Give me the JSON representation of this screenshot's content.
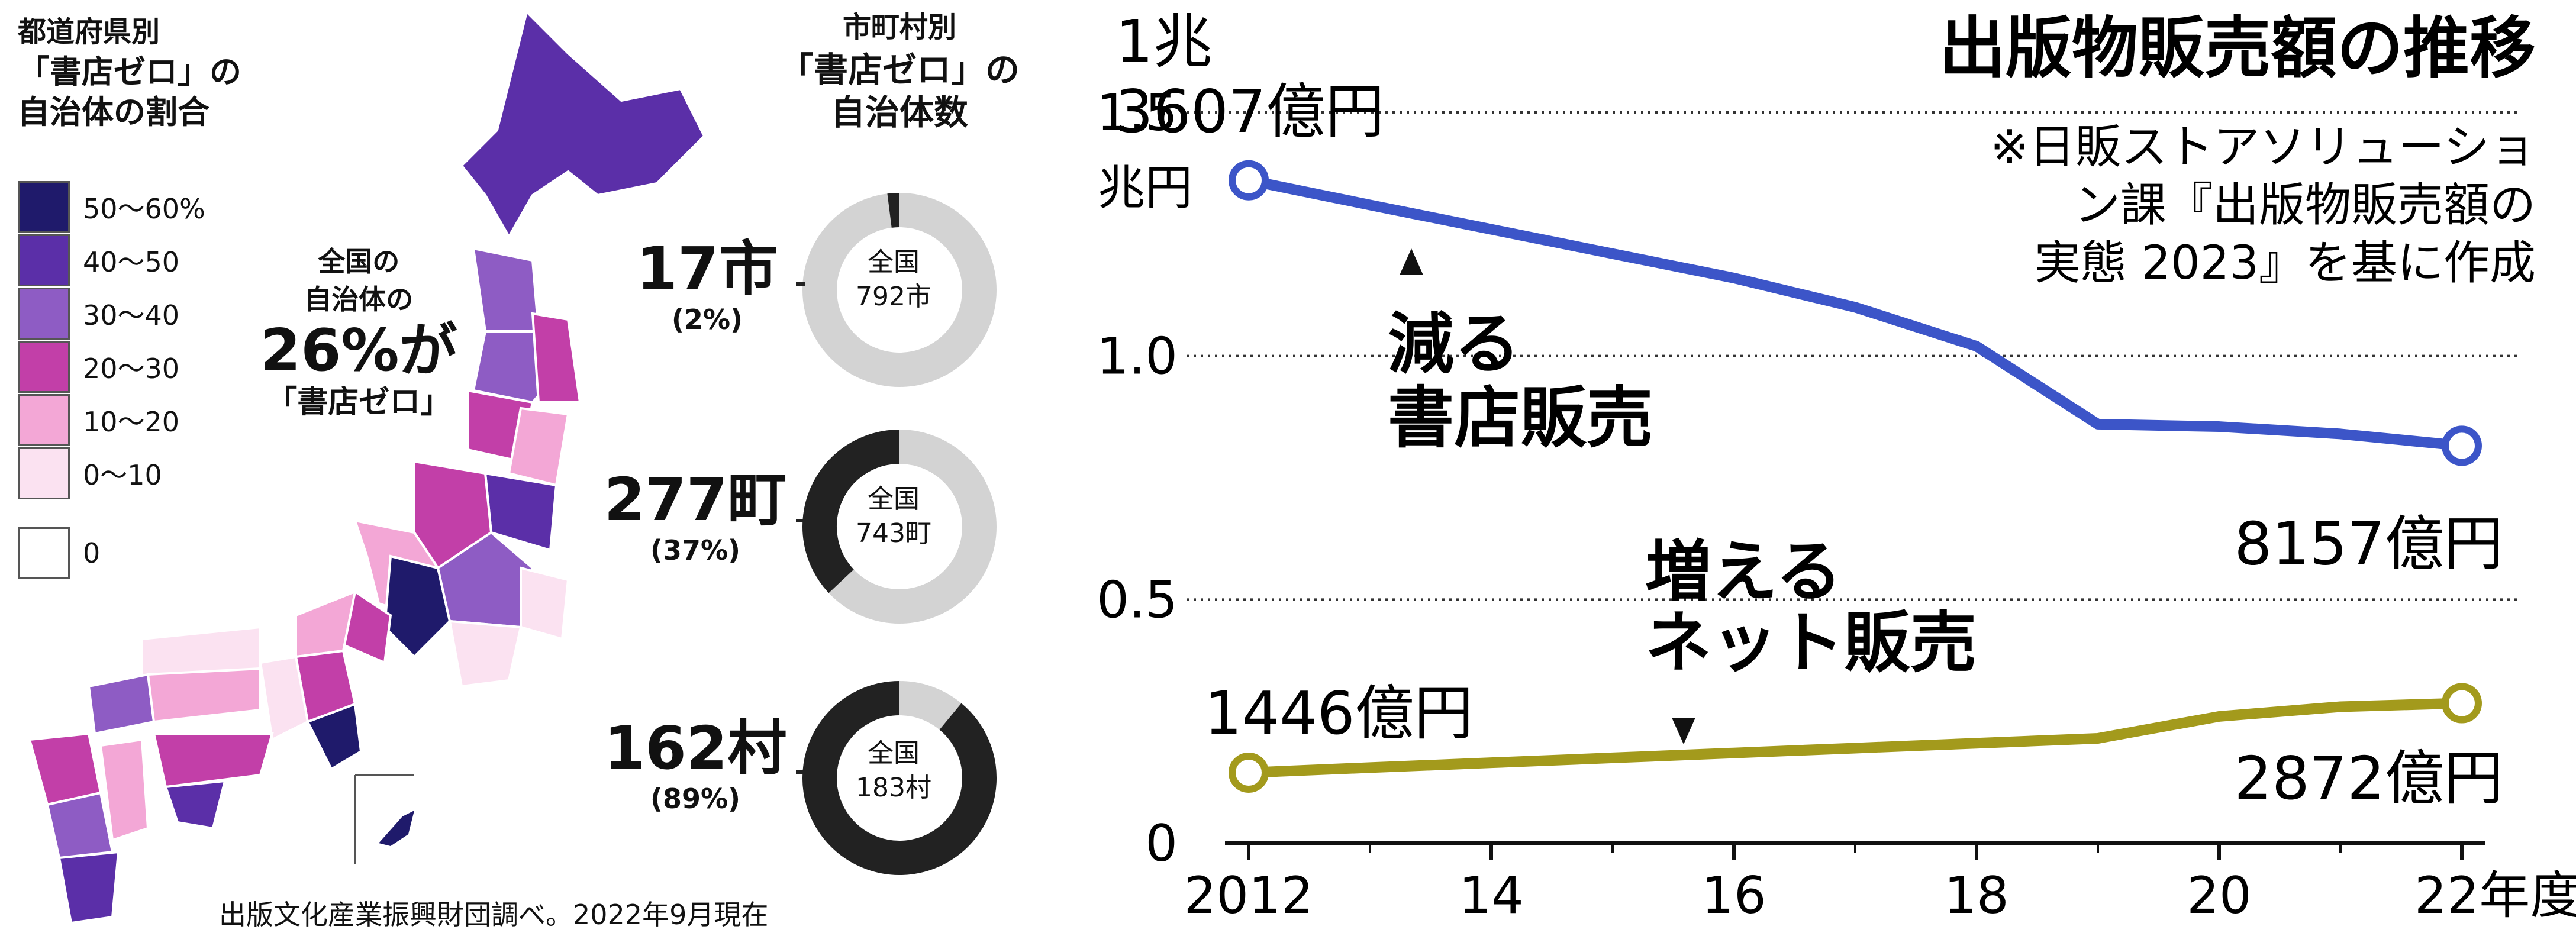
{
  "map": {
    "title_line1": "都道府県別",
    "title_line2": "「書店ゼロ」の",
    "title_line3": "自治体の割合",
    "legend": [
      {
        "label": "50〜60%",
        "color": "#1f1a6b"
      },
      {
        "label": "40〜50",
        "color": "#5b2fa8"
      },
      {
        "label": "30〜40",
        "color": "#8e5cc4"
      },
      {
        "label": "20〜30",
        "color": "#c23fa8"
      },
      {
        "label": "10〜20",
        "color": "#f3a7d6"
      },
      {
        "label": "0〜10",
        "color": "#fbe2f1"
      },
      {
        "label": "0",
        "color": "#ffffff"
      }
    ],
    "callout_line1": "全国の",
    "callout_line2": "自治体の",
    "callout_big": "26%が",
    "callout_line4": "「書店ゼロ」"
  },
  "donuts": {
    "title_line1": "市町村別",
    "title_line2": "「書店ゼロ」の",
    "title_line3": "自治体数",
    "items": [
      {
        "count_label": "17市",
        "pct_label": "(2%)",
        "center_line1": "全国",
        "center_line2": "792市",
        "fraction": 0.02
      },
      {
        "count_label": "277町",
        "pct_label": "(37%)",
        "center_line1": "全国",
        "center_line2": "743町",
        "fraction": 0.37
      },
      {
        "count_label": "162村",
        "pct_label": "(89%)",
        "center_line1": "全国",
        "center_line2": "183村",
        "fraction": 0.89
      }
    ],
    "colors": {
      "filled": "#222222",
      "remaining": "#d3d3d3"
    }
  },
  "source": "出版文化産業振興財団調べ。2022年9月現在",
  "chart_data": {
    "type": "line",
    "title": "出版物販売額の推移",
    "note_lines": [
      "※日販ストアソリューショ",
      "ン課『出版物販売額の",
      "実態 2023』を基に作成"
    ],
    "ylabel": "兆円",
    "ylim": [
      0,
      1.5
    ],
    "yticks": [
      {
        "value": 0,
        "label": "0"
      },
      {
        "value": 0.5,
        "label": "0.5"
      },
      {
        "value": 1.0,
        "label": "1.0"
      },
      {
        "value": 1.5,
        "label": "1.5"
      }
    ],
    "xlim": [
      2012,
      2022
    ],
    "xticks": [
      {
        "value": 2012,
        "label": "2012"
      },
      {
        "value": 2014,
        "label": "14"
      },
      {
        "value": 2016,
        "label": "16"
      },
      {
        "value": 2018,
        "label": "18"
      },
      {
        "value": 2020,
        "label": "20"
      },
      {
        "value": 2022,
        "label": "22年度"
      }
    ],
    "grid": true,
    "series": [
      {
        "name": "減る書店販売",
        "name_lines": [
          "減る",
          "書店販売"
        ],
        "color": "#3c55c8",
        "x": [
          2012,
          2013,
          2014,
          2015,
          2016,
          2017,
          2018,
          2019,
          2020,
          2021,
          2022
        ],
        "y": [
          1.3607,
          1.31,
          1.26,
          1.21,
          1.16,
          1.1,
          1.02,
          0.86,
          0.855,
          0.84,
          0.8157
        ],
        "start_label_lines": [
          "1兆",
          "3607億円"
        ],
        "end_label": "8157億円"
      },
      {
        "name": "増えるネット販売",
        "name_lines": [
          "増える",
          "ネット販売"
        ],
        "color": "#a39a1c",
        "x": [
          2012,
          2013,
          2014,
          2015,
          2016,
          2017,
          2018,
          2019,
          2020,
          2021,
          2022
        ],
        "y": [
          0.1446,
          0.155,
          0.165,
          0.175,
          0.185,
          0.195,
          0.205,
          0.215,
          0.26,
          0.28,
          0.2872
        ],
        "start_label": "1446億円",
        "end_label": "2872億円"
      }
    ]
  }
}
